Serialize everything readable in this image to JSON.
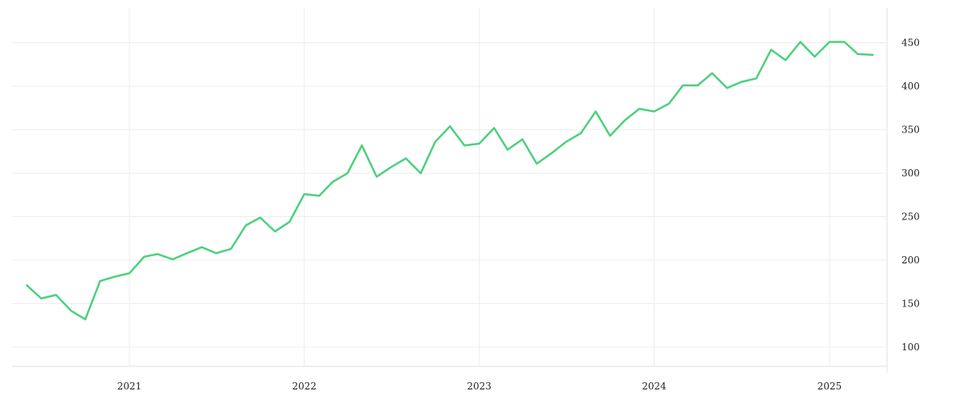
{
  "chart_data": {
    "type": "line",
    "title": "",
    "xlabel": "",
    "ylabel": "",
    "x_ticks": [
      "2021",
      "2022",
      "2023",
      "2024",
      "2025"
    ],
    "y_ticks": [
      100,
      150,
      200,
      250,
      300,
      350,
      400,
      450
    ],
    "ylim": [
      78,
      490
    ],
    "xlim": [
      "2020-05-01",
      "2025-05-01"
    ],
    "grid": true,
    "y_axis_position": "right",
    "series": [
      {
        "color": "#4cd07d",
        "x": [
          "2020-06-01",
          "2020-07-01",
          "2020-08-01",
          "2020-09-01",
          "2020-10-01",
          "2020-11-01",
          "2020-12-01",
          "2021-01-01",
          "2021-02-01",
          "2021-03-01",
          "2021-04-01",
          "2021-05-01",
          "2021-06-01",
          "2021-07-01",
          "2021-08-01",
          "2021-09-01",
          "2021-10-01",
          "2021-11-01",
          "2021-12-01",
          "2022-01-01",
          "2022-02-01",
          "2022-03-01",
          "2022-04-01",
          "2022-05-01",
          "2022-06-01",
          "2022-07-01",
          "2022-08-01",
          "2022-09-01",
          "2022-10-01",
          "2022-11-01",
          "2022-12-01",
          "2023-01-01",
          "2023-02-01",
          "2023-03-01",
          "2023-04-01",
          "2023-05-01",
          "2023-06-01",
          "2023-07-01",
          "2023-08-01",
          "2023-09-01",
          "2023-10-01",
          "2023-11-01",
          "2023-12-01",
          "2024-01-01",
          "2024-02-01",
          "2024-03-01",
          "2024-04-01",
          "2024-05-01",
          "2024-06-01",
          "2024-07-01",
          "2024-08-01",
          "2024-09-01",
          "2024-10-01",
          "2024-11-01",
          "2024-12-01",
          "2025-01-01",
          "2025-02-01",
          "2025-03-01",
          "2025-04-01"
        ],
        "values": [
          171,
          156,
          160,
          142,
          132,
          176,
          181,
          185,
          204,
          207,
          201,
          208,
          215,
          208,
          213,
          240,
          249,
          233,
          244,
          276,
          274,
          290,
          300,
          332,
          296,
          307,
          317,
          300,
          336,
          354,
          332,
          334,
          352,
          327,
          339,
          311,
          323,
          336,
          346,
          371,
          343,
          361,
          374,
          371,
          380,
          401,
          401,
          415,
          398,
          405,
          409,
          442,
          430,
          451,
          434,
          451,
          451,
          437,
          436
        ]
      }
    ]
  }
}
